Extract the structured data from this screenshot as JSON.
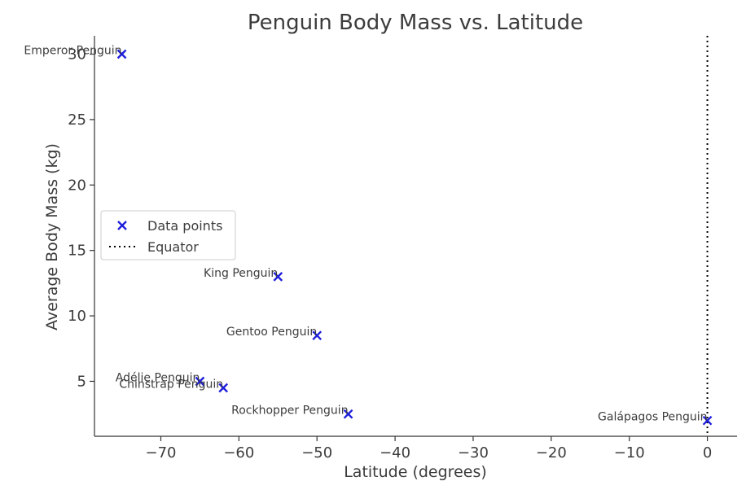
{
  "chart_data": {
    "type": "scatter",
    "title": "Penguin Body Mass vs. Latitude",
    "xlabel": "Latitude (degrees)",
    "ylabel": "Average Body Mass (kg)",
    "xlim": [
      -78.5,
      3.8
    ],
    "ylim": [
      0.8,
      31.4
    ],
    "xticks": [
      -70,
      -60,
      -50,
      -40,
      -30,
      -20,
      -10,
      0
    ],
    "xtick_labels": [
      "−70",
      "−60",
      "−50",
      "−40",
      "−30",
      "−20",
      "−10",
      "0"
    ],
    "yticks": [
      5,
      10,
      15,
      20,
      25,
      30
    ],
    "ytick_labels": [
      "5",
      "10",
      "15",
      "20",
      "25",
      "30"
    ],
    "grid": false,
    "legend_placement": "center-left",
    "series": [
      {
        "name": "Data points",
        "marker": "x",
        "color": "#1f1fdc",
        "points": [
          {
            "label": "Emperor Penguin",
            "x": -75,
            "y": 30
          },
          {
            "label": "King Penguin",
            "x": -55,
            "y": 13
          },
          {
            "label": "Gentoo Penguin",
            "x": -50,
            "y": 8.5
          },
          {
            "label": "Adélie Penguin",
            "x": -65,
            "y": 5
          },
          {
            "label": "Chinstrap Penguin",
            "x": -62,
            "y": 4.5
          },
          {
            "label": "Rockhopper Penguin",
            "x": -46,
            "y": 2.5
          },
          {
            "label": "Galápagos Penguin",
            "x": 0,
            "y": 2
          }
        ]
      }
    ],
    "reference_lines": [
      {
        "name": "Equator",
        "orientation": "vertical",
        "x": 0,
        "style": "dotted",
        "color": "#000000"
      }
    ]
  }
}
